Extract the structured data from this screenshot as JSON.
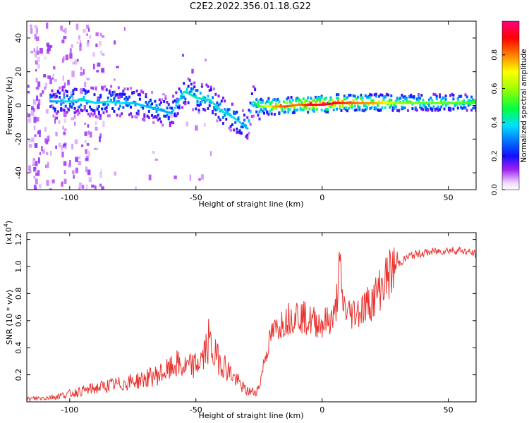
{
  "title": "C2E2.2022.356.01.18.G22",
  "chart_data": [
    {
      "type": "heatmap",
      "xlabel": "Height of straight line (km)",
      "ylabel": "Frequency (Hz)",
      "xlim": [
        -117,
        61
      ],
      "ylim": [
        -50,
        50
      ],
      "xticks": [
        -100,
        -50,
        0,
        50
      ],
      "yticks": [
        -40,
        -20,
        0,
        20,
        40
      ],
      "colorbar": {
        "label": "Normalized spectral amplitude",
        "range": [
          0,
          1
        ],
        "ticks": [
          0.0,
          0.2,
          0.4,
          0.6,
          0.8
        ]
      },
      "ridge": [
        {
          "x": -105,
          "y": 2,
          "a": 0.35
        },
        {
          "x": -100,
          "y": 2,
          "a": 0.4
        },
        {
          "x": -95,
          "y": 3,
          "a": 0.4
        },
        {
          "x": -90,
          "y": 1,
          "a": 0.38
        },
        {
          "x": -85,
          "y": 2,
          "a": 0.4
        },
        {
          "x": -80,
          "y": 1,
          "a": 0.38
        },
        {
          "x": -75,
          "y": 1,
          "a": 0.36
        },
        {
          "x": -70,
          "y": -1,
          "a": 0.36
        },
        {
          "x": -65,
          "y": -3,
          "a": 0.34
        },
        {
          "x": -60,
          "y": -5,
          "a": 0.34
        },
        {
          "x": -55,
          "y": 8,
          "a": 0.42
        },
        {
          "x": -50,
          "y": 4,
          "a": 0.42
        },
        {
          "x": -45,
          "y": 3,
          "a": 0.4
        },
        {
          "x": -40,
          "y": -4,
          "a": 0.4
        },
        {
          "x": -35,
          "y": -8,
          "a": 0.38
        },
        {
          "x": -30,
          "y": -14,
          "a": 0.35
        },
        {
          "x": -28,
          "y": 2,
          "a": 0.4
        },
        {
          "x": -25,
          "y": -1,
          "a": 0.55
        },
        {
          "x": -20,
          "y": -1,
          "a": 0.75
        },
        {
          "x": -15,
          "y": -1,
          "a": 0.85
        },
        {
          "x": -10,
          "y": 0,
          "a": 0.8
        },
        {
          "x": -5,
          "y": 0,
          "a": 0.9
        },
        {
          "x": 0,
          "y": 0,
          "a": 0.95
        },
        {
          "x": 5,
          "y": 1,
          "a": 0.9
        },
        {
          "x": 10,
          "y": 1,
          "a": 0.85
        },
        {
          "x": 15,
          "y": 1,
          "a": 0.8
        },
        {
          "x": 20,
          "y": 1,
          "a": 0.78
        },
        {
          "x": 25,
          "y": 1,
          "a": 0.7
        },
        {
          "x": 30,
          "y": 1,
          "a": 0.6
        },
        {
          "x": 40,
          "y": 1,
          "a": 0.55
        },
        {
          "x": 50,
          "y": 1,
          "a": 0.55
        },
        {
          "x": 60,
          "y": 1,
          "a": 0.52
        }
      ]
    },
    {
      "type": "line",
      "xlabel": "Height of straight line (km)",
      "ylabel": "SNR (10 * v/v)",
      "yscale_label": "(x10",
      "yscale_exponent": "4",
      "xlim": [
        -117,
        61
      ],
      "ylim": [
        0,
        1.25
      ],
      "xticks": [
        -100,
        -50,
        0,
        50
      ],
      "yticks": [
        0.2,
        0.4,
        0.6,
        0.8,
        1.0,
        1.2
      ],
      "line_color": "#e8322e",
      "series": [
        {
          "x": [
            -117,
            -110,
            -105,
            -100,
            -95,
            -90,
            -85,
            -80,
            -75,
            -70,
            -65,
            -60,
            -58,
            -55,
            -50,
            -47,
            -45,
            -43,
            -40,
            -35,
            -30,
            -27,
            -25,
            -23,
            -20,
            -15,
            -10,
            -5,
            0,
            5,
            7,
            8,
            10,
            15,
            20,
            25,
            30,
            35,
            40,
            45,
            50,
            55,
            61
          ],
          "y": [
            0.02,
            0.03,
            0.04,
            0.06,
            0.08,
            0.1,
            0.12,
            0.13,
            0.15,
            0.17,
            0.2,
            0.24,
            0.28,
            0.25,
            0.27,
            0.33,
            0.45,
            0.35,
            0.3,
            0.18,
            0.08,
            0.07,
            0.1,
            0.3,
            0.5,
            0.6,
            0.65,
            0.6,
            0.58,
            0.62,
            1.0,
            0.75,
            0.65,
            0.68,
            0.75,
            0.9,
            1.02,
            1.08,
            1.1,
            1.11,
            1.12,
            1.12,
            1.09
          ]
        }
      ]
    }
  ]
}
